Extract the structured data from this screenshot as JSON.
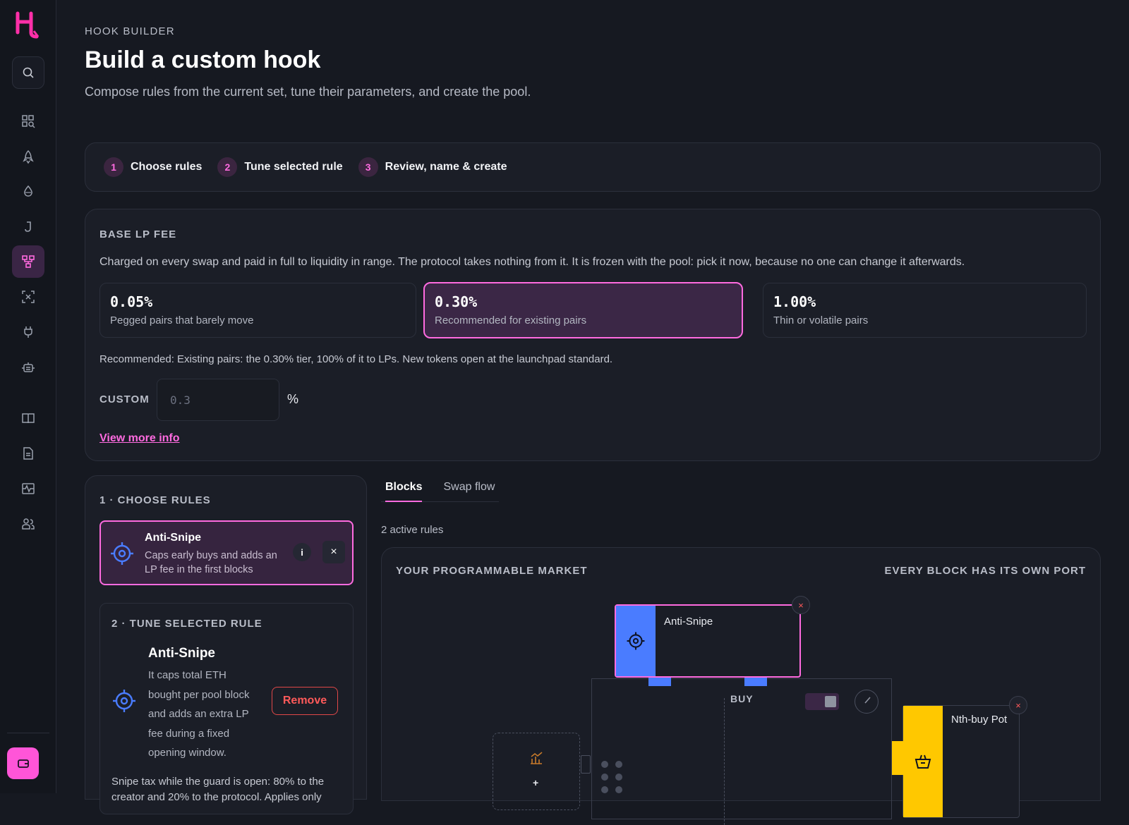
{
  "header": {
    "eyebrow": "HOOK BUILDER",
    "title": "Build a custom hook",
    "subtitle": "Compose rules from the current set, tune their parameters, and create the pool."
  },
  "steps": [
    {
      "num": "1",
      "label": "Choose rules"
    },
    {
      "num": "2",
      "label": "Tune selected rule"
    },
    {
      "num": "3",
      "label": "Review, name & create"
    }
  ],
  "fee": {
    "label": "BASE LP FEE",
    "description": "Charged on every swap and paid in full to liquidity in range. The protocol takes nothing from it. It is frozen with the pool: pick it now, because no one can change it afterwards.",
    "options": [
      {
        "value": "0.05%",
        "caption": "Pegged pairs that barely move"
      },
      {
        "value": "0.30%",
        "caption": "Recommended for existing pairs"
      },
      {
        "value": "1.00%",
        "caption": "Thin or volatile pairs"
      }
    ],
    "selected_index": 1,
    "recommendation": "Recommended: Existing pairs: the 0.30% tier, 100% of it to LPs. New tokens open at the launchpad standard.",
    "custom_label": "CUSTOM",
    "custom_placeholder": "0.3",
    "custom_unit": "%",
    "more_info": "View more info"
  },
  "rules": {
    "label": "1 · CHOOSE RULES",
    "card": {
      "name": "Anti-Snipe",
      "description": "Caps early buys and adds an LP fee in the first blocks",
      "info": "i",
      "close": "×"
    },
    "tune": {
      "label": "2 · TUNE SELECTED RULE",
      "title": "Anti-Snipe",
      "description": "It caps total ETH bought per pool block and adds an extra LP fee during a fixed opening window.",
      "remove": "Remove",
      "note": "Snipe tax while the guard is open: 80% to the creator and 20% to the protocol. Applies only"
    }
  },
  "tabs": [
    {
      "label": "Blocks",
      "active": true
    },
    {
      "label": "Swap flow",
      "active": false
    }
  ],
  "active_count": "2 active rules",
  "canvas": {
    "title": "YOUR PROGRAMMABLE MARKET",
    "subtitle": "EVERY BLOCK HAS ITS OWN PORT",
    "anti_snipe_label": "Anti-Snipe",
    "buy_label": "BUY",
    "nth_buy_label": "Nth-buy Pot",
    "remove_x": "×",
    "ghost_plus": "+"
  },
  "colors": {
    "accent": "#ff6be0",
    "anti_snipe": "#4a7cff",
    "nth_buy": "#ffc800",
    "danger": "#ff5a5a"
  },
  "icons": [
    "search-icon",
    "grid-search-icon",
    "rocket-icon",
    "drop-icon",
    "j-icon",
    "hierarchy-icon",
    "scan-icon",
    "plug-icon",
    "robot-icon",
    "book-icon",
    "document-icon",
    "pulse-icon",
    "users-icon",
    "wallet-icon",
    "target-icon",
    "basket-icon",
    "chart-icon"
  ]
}
